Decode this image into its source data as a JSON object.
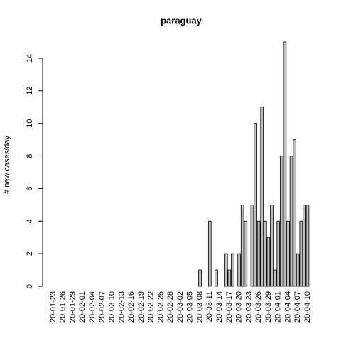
{
  "chart_data": {
    "type": "bar",
    "title": "paraguay",
    "y_label": "# new cases/day",
    "categories": [
      "20-01-23",
      null,
      null,
      "20-01-26",
      null,
      null,
      "20-01-29",
      null,
      null,
      "20-02-01",
      null,
      null,
      "20-02-04",
      null,
      null,
      "20-02-07",
      null,
      null,
      "20-02-10",
      null,
      null,
      "20-02-13",
      null,
      null,
      "20-02-16",
      null,
      null,
      "20-02-19",
      null,
      null,
      "20-02-22",
      null,
      null,
      "20-02-25",
      null,
      null,
      "20-02-28",
      null,
      null,
      "20-03-02",
      null,
      null,
      "20-03-05",
      null,
      null,
      "20-03-08",
      null,
      null,
      "20-03-11",
      null,
      null,
      "20-03-14",
      null,
      null,
      "20-03-17",
      null,
      null,
      "20-03-20",
      null,
      null,
      "20-03-23",
      null,
      null,
      "20-03-26",
      null,
      null,
      "20-03-29",
      null,
      null,
      "20-04-01",
      null,
      null,
      "20-04-04",
      null,
      null,
      "20-04-07",
      null,
      null,
      "20-04-10"
    ],
    "values": [
      0,
      0,
      0,
      0,
      0,
      0,
      0,
      0,
      0,
      0,
      0,
      0,
      0,
      0,
      0,
      0,
      0,
      0,
      0,
      0,
      0,
      0,
      0,
      0,
      0,
      0,
      0,
      0,
      0,
      0,
      0,
      0,
      0,
      0,
      0,
      0,
      0,
      0,
      0,
      0,
      0,
      0,
      0,
      0,
      0,
      1,
      0,
      0,
      4,
      0,
      1,
      0,
      0,
      2,
      1,
      2,
      0,
      2,
      5,
      4,
      0,
      5,
      10,
      4,
      11,
      4,
      3,
      5,
      1,
      4,
      8,
      15,
      4,
      8,
      9,
      2,
      4,
      5,
      5
    ],
    "color": "#bebebe",
    "ylim": [
      0,
      15
    ],
    "yticks": [
      0,
      2,
      4,
      6,
      8,
      10,
      12,
      14
    ]
  }
}
